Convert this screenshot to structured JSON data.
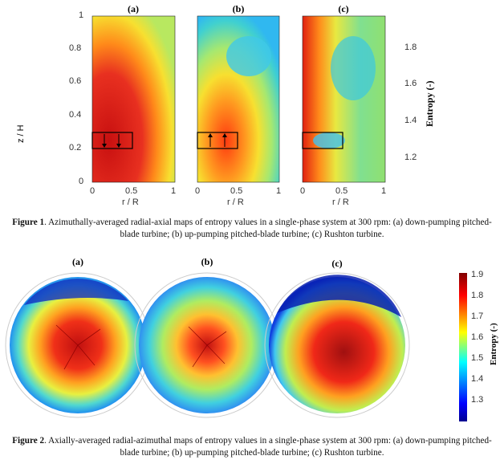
{
  "figure1": {
    "panels": [
      {
        "label": "(a)"
      },
      {
        "label": "(b)"
      },
      {
        "label": "(c)"
      }
    ],
    "ylabel": "z / H",
    "xlabel": "r / R",
    "yticks": [
      "1",
      "0.8",
      "0.6",
      "0.4",
      "0.2",
      "0"
    ],
    "xticks": [
      "0",
      "0.5",
      "1"
    ],
    "colorbar": {
      "label": "Entropy (-)",
      "ticks": [
        "1.8",
        "1.6",
        "1.4",
        "1.2"
      ],
      "range": [
        1.08,
        1.96
      ]
    },
    "caption_label": "Figure 1",
    "caption_text": ". Azimuthally-averaged radial-axial maps of entropy values in a single-phase system at 300 rpm: (a) down-pumping pitched-blade turbine; (b) up-pumping pitched-blade turbine; (c) Rushton turbine."
  },
  "figure2": {
    "panels": [
      {
        "label": "(a)"
      },
      {
        "label": "(b)"
      },
      {
        "label": "(c)"
      }
    ],
    "colorbar": {
      "label": "Entropy (-)",
      "ticks": [
        "1.9",
        "1.8",
        "1.7",
        "1.6",
        "1.5",
        "1.4",
        "1.3"
      ],
      "range": [
        1.21,
        1.93
      ]
    },
    "caption_label": "Figure 2",
    "caption_text": ". Axially-averaged radial-azimuthal maps of entropy values in a single-phase system at 300 rpm: (a) down-pumping pitched-blade turbine; (b) up-pumping pitched-blade turbine; (c) Rushton turbine."
  },
  "colors": {
    "jet": [
      "#00008f",
      "#0000ff",
      "#00ffff",
      "#ffff00",
      "#ff0000",
      "#800000"
    ]
  }
}
